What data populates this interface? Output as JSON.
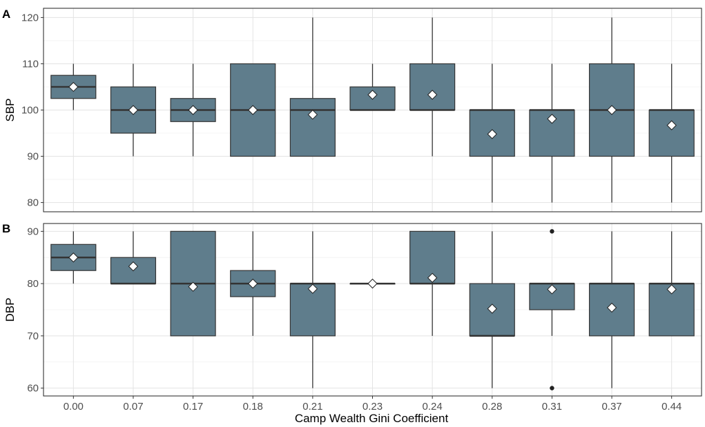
{
  "chart_data": {
    "type": "box",
    "x": [
      "0.00",
      "0.07",
      "0.17",
      "0.18",
      "0.21",
      "0.23",
      "0.24",
      "0.28",
      "0.31",
      "0.37",
      "0.44"
    ],
    "xlabel": "Camp Wealth Gini Coefficient",
    "colors": {
      "box_fill": "#5f7d8c",
      "stroke": "#333333",
      "mean_marker": "#ffffff",
      "grid": "#e3e3e3"
    },
    "panels": [
      {
        "label": "A",
        "ylabel": "SBP",
        "ylim": [
          78,
          122
        ],
        "yticks": [
          80,
          90,
          100,
          110,
          120
        ],
        "boxes": [
          {
            "min": 100,
            "q1": 102.5,
            "median": 105,
            "q3": 107.5,
            "max": 110,
            "mean": 105,
            "outliers": []
          },
          {
            "min": 90,
            "q1": 95,
            "median": 100,
            "q3": 105,
            "max": 110,
            "mean": 100,
            "outliers": []
          },
          {
            "min": 90,
            "q1": 97.5,
            "median": 100,
            "q3": 102.5,
            "max": 110,
            "mean": 100,
            "outliers": []
          },
          {
            "min": 90,
            "q1": 90,
            "median": 100,
            "q3": 110,
            "max": 110,
            "mean": 100,
            "outliers": []
          },
          {
            "min": 90,
            "q1": 90,
            "median": 100,
            "q3": 102.5,
            "max": 120,
            "mean": 99,
            "outliers": []
          },
          {
            "min": 100,
            "q1": 100,
            "median": 100,
            "q3": 105,
            "max": 110,
            "mean": 103.3,
            "outliers": []
          },
          {
            "min": 90,
            "q1": 100,
            "median": 100,
            "q3": 110,
            "max": 120,
            "mean": 103.3,
            "outliers": []
          },
          {
            "min": 80,
            "q1": 90,
            "median": 100,
            "q3": 100,
            "max": 110,
            "mean": 94.8,
            "outliers": []
          },
          {
            "min": 80,
            "q1": 90,
            "median": 100,
            "q3": 100,
            "max": 110,
            "mean": 98.1,
            "outliers": []
          },
          {
            "min": 80,
            "q1": 90,
            "median": 100,
            "q3": 110,
            "max": 120,
            "mean": 100,
            "outliers": []
          },
          {
            "min": 80,
            "q1": 90,
            "median": 100,
            "q3": 100,
            "max": 110,
            "mean": 96.7,
            "outliers": []
          }
        ]
      },
      {
        "label": "B",
        "ylabel": "DBP",
        "ylim": [
          58.5,
          91.5
        ],
        "yticks": [
          60,
          70,
          80,
          90
        ],
        "boxes": [
          {
            "min": 80,
            "q1": 82.5,
            "median": 85,
            "q3": 87.5,
            "max": 90,
            "mean": 85,
            "outliers": []
          },
          {
            "min": 80,
            "q1": 80,
            "median": 80,
            "q3": 85,
            "max": 90,
            "mean": 83.3,
            "outliers": []
          },
          {
            "min": 70,
            "q1": 70,
            "median": 80,
            "q3": 90,
            "max": 90,
            "mean": 79.4,
            "outliers": []
          },
          {
            "min": 70,
            "q1": 77.5,
            "median": 80,
            "q3": 82.5,
            "max": 90,
            "mean": 80,
            "outliers": []
          },
          {
            "min": 60,
            "q1": 70,
            "median": 80,
            "q3": 80,
            "max": 90,
            "mean": 79,
            "outliers": []
          },
          {
            "min": 80,
            "q1": 80,
            "median": 80,
            "q3": 80,
            "max": 80,
            "mean": 80,
            "outliers": []
          },
          {
            "min": 70,
            "q1": 80,
            "median": 80,
            "q3": 90,
            "max": 90,
            "mean": 81.1,
            "outliers": []
          },
          {
            "min": 60,
            "q1": 70,
            "median": 70,
            "q3": 80,
            "max": 90,
            "mean": 75.2,
            "outliers": []
          },
          {
            "min": 70,
            "q1": 75,
            "median": 80,
            "q3": 80,
            "max": 80,
            "mean": 78.9,
            "outliers": [
              60,
              90
            ]
          },
          {
            "min": 60,
            "q1": 70,
            "median": 80,
            "q3": 80,
            "max": 90,
            "mean": 75.4,
            "outliers": []
          },
          {
            "min": 70,
            "q1": 70,
            "median": 80,
            "q3": 80,
            "max": 90,
            "mean": 78.9,
            "outliers": []
          }
        ]
      }
    ]
  }
}
